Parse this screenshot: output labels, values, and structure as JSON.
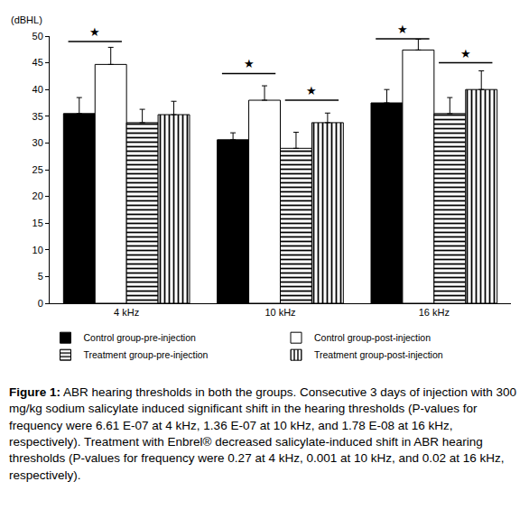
{
  "chart_data": {
    "type": "bar",
    "y_label": "(dBHL)",
    "categories": [
      "4 kHz",
      "10 kHz",
      "16 kHz"
    ],
    "series": [
      {
        "name": "Control group-pre-injection",
        "color": "#000000",
        "values": [
          35.5,
          30.6,
          37.5
        ],
        "errors": [
          3.0,
          1.3,
          2.5
        ]
      },
      {
        "name": "Control group-post-injection",
        "color": "#ffffff",
        "values": [
          44.7,
          38.0,
          47.4
        ],
        "errors": [
          3.2,
          2.7,
          2.0
        ]
      },
      {
        "name": "Treatment group-pre-injection",
        "color": "#ffffff",
        "values": [
          33.8,
          29.0,
          35.5
        ],
        "errors": [
          2.5,
          3.0,
          3.0
        ]
      },
      {
        "name": "Treatment group-post-injection",
        "color": "#ffffff",
        "values": [
          35.3,
          33.8,
          40.0
        ],
        "errors": [
          2.5,
          1.8,
          3.5
        ]
      }
    ],
    "significance": [
      {
        "category": "4 kHz",
        "between": [
          "Control group-pre-injection",
          "Control group-post-injection"
        ],
        "y": 49,
        "label": "★"
      },
      {
        "category": "10 kHz",
        "between": [
          "Control group-pre-injection",
          "Control group-post-injection"
        ],
        "y": 43,
        "label": "★"
      },
      {
        "category": "10 kHz",
        "between": [
          "Treatment group-pre-injection",
          "Treatment group-post-injection"
        ],
        "y": 38,
        "label": "★"
      },
      {
        "category": "16 kHz",
        "between": [
          "Control group-pre-injection",
          "Control group-post-injection"
        ],
        "y": 49.5,
        "label": "★"
      },
      {
        "category": "16 kHz",
        "between": [
          "Treatment group-pre-injection",
          "Treatment group-post-injection"
        ],
        "y": 45,
        "label": "★"
      }
    ],
    "ylim": [
      0,
      50
    ],
    "yticks": [
      0,
      5,
      10,
      15,
      20,
      25,
      30,
      35,
      40,
      45,
      50
    ],
    "grid": false,
    "legend": "bottom",
    "caption": {
      "label": "Figure 1:",
      "text": "ABR hearing thresholds in both the groups. Consecutive 3 days of injection with 300 mg/kg sodium salicylate induced significant shift in the hearing thresholds (P-values for frequency were 6.61 E-07 at 4 kHz, 1.36 E-07 at 10 kHz, and 1.78 E-08 at 16 kHz, respectively). Treatment with Enbrel® decreased salicylate-induced shift in ABR hearing thresholds (P-values for frequency were 0.27 at 4 kHz, 0.001 at 10 kHz, and 0.02 at 16 kHz, respectively)."
    }
  }
}
